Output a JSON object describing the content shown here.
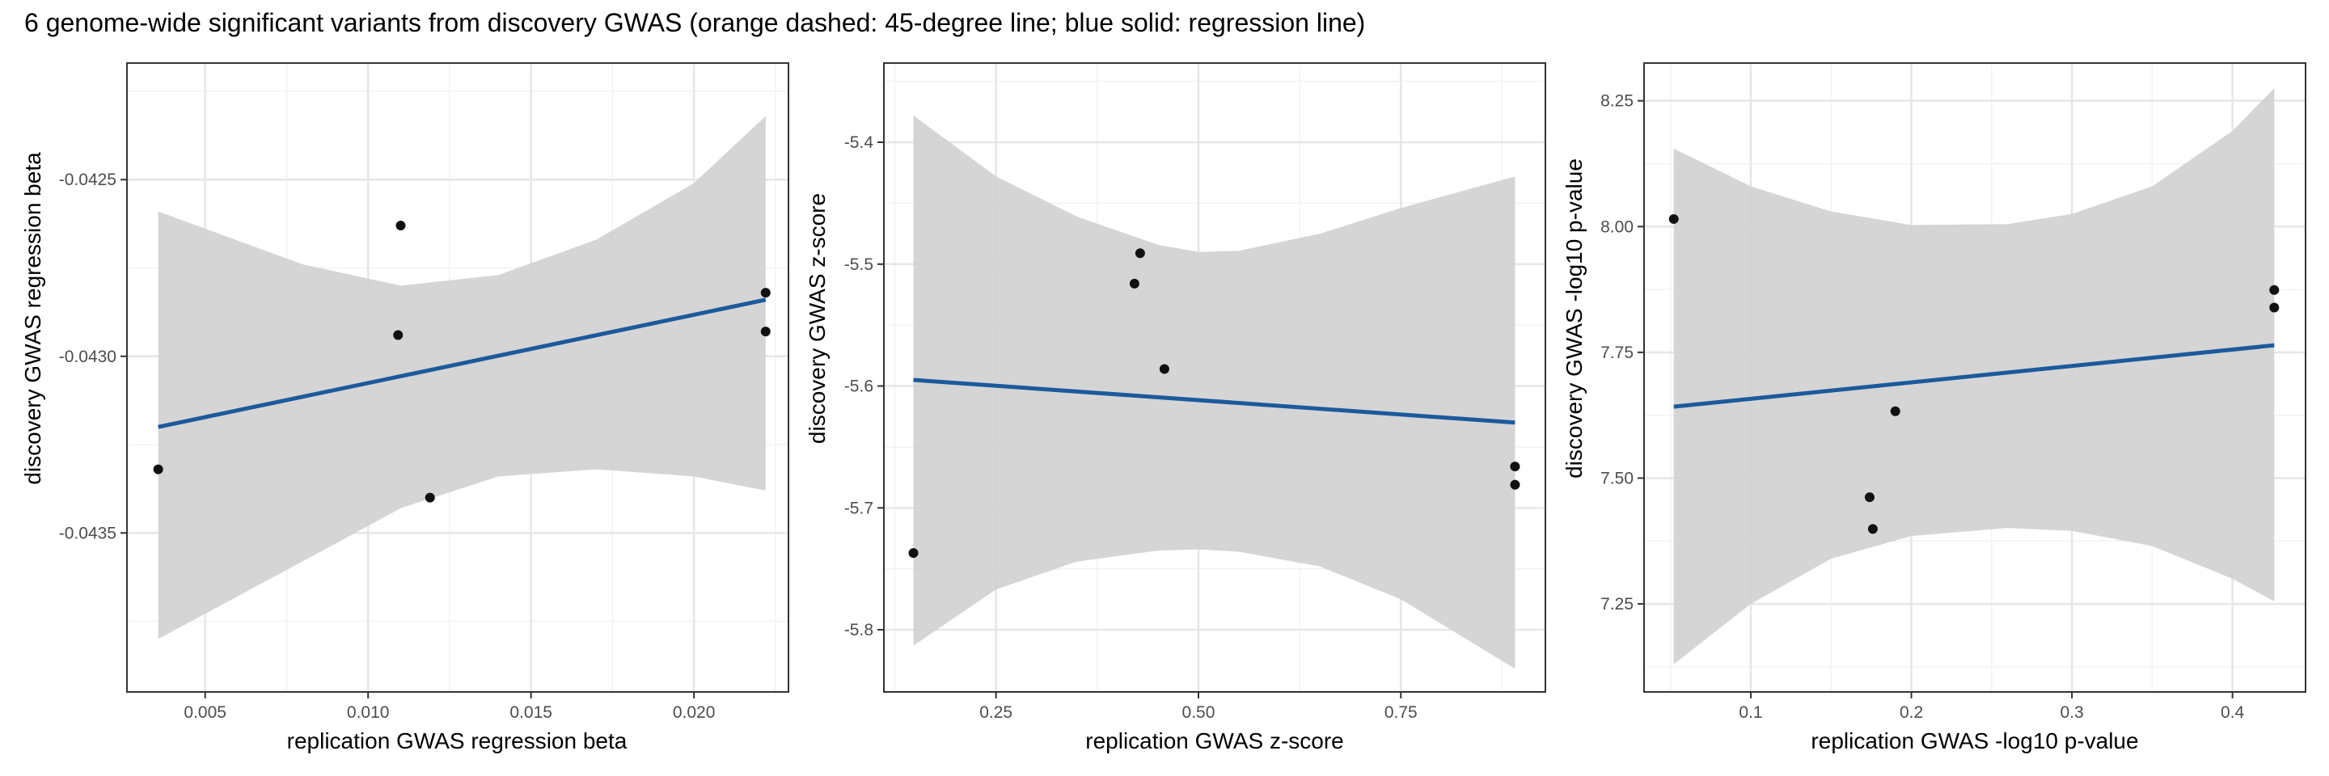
{
  "title": "6 genome-wide significant variants from discovery GWAS (orange dashed: 45-degree line; blue solid: regression line)",
  "colors": {
    "regression_line": "#1c5a9c",
    "confidence_band": "#d0d0d0",
    "points": "#111111",
    "panel_border": "#333333",
    "grid_major": "#e6e6e6",
    "grid_minor": "#f2f2f2"
  },
  "chart_data": [
    {
      "type": "scatter",
      "xlabel": "replication GWAS regression beta",
      "ylabel": "discovery GWAS regression beta",
      "xlim": [
        0.0026,
        0.0229
      ],
      "ylim": [
        -0.04395,
        -0.04217
      ],
      "xticks": [
        0.005,
        0.01,
        0.015,
        0.02
      ],
      "xtick_labels": [
        "0.005",
        "0.010",
        "0.015",
        "0.020"
      ],
      "yticks": [
        -0.0425,
        -0.043,
        -0.0435
      ],
      "ytick_labels": [
        "-0.0425",
        "-0.0430",
        "-0.0435"
      ],
      "points": [
        {
          "x": 0.00356,
          "y": -0.04332
        },
        {
          "x": 0.011,
          "y": -0.04263
        },
        {
          "x": 0.01092,
          "y": -0.04294
        },
        {
          "x": 0.0119,
          "y": -0.0434
        },
        {
          "x": 0.0222,
          "y": -0.04282
        },
        {
          "x": 0.0222,
          "y": -0.04293
        }
      ],
      "regression": {
        "x": [
          0.00356,
          0.0222
        ],
        "y": [
          -0.0432,
          -0.04284
        ]
      },
      "band": {
        "x": [
          0.00356,
          0.008,
          0.011,
          0.014,
          0.017,
          0.02,
          0.0222
        ],
        "lower": [
          -0.0438,
          -0.04358,
          -0.04343,
          -0.04334,
          -0.04332,
          -0.04334,
          -0.04338
        ],
        "upper": [
          -0.04259,
          -0.04274,
          -0.0428,
          -0.04277,
          -0.04267,
          -0.04251,
          -0.04232
        ]
      }
    },
    {
      "type": "scatter",
      "xlabel": "replication GWAS z-score",
      "ylabel": "discovery GWAS z-score",
      "xlim": [
        0.1115,
        0.9285
      ],
      "ylim": [
        -5.851,
        -5.335
      ],
      "xticks": [
        0.25,
        0.5,
        0.75
      ],
      "xtick_labels": [
        "0.25",
        "0.50",
        "0.75"
      ],
      "yticks": [
        -5.4,
        -5.5,
        -5.6,
        -5.7,
        -5.8
      ],
      "ytick_labels": [
        "-5.4",
        "-5.5",
        "-5.6",
        "-5.7",
        "-5.8"
      ],
      "points": [
        {
          "x": 0.148,
          "y": -5.737
        },
        {
          "x": 0.428,
          "y": -5.491
        },
        {
          "x": 0.421,
          "y": -5.516
        },
        {
          "x": 0.458,
          "y": -5.586
        },
        {
          "x": 0.891,
          "y": -5.666
        },
        {
          "x": 0.891,
          "y": -5.681
        }
      ],
      "regression": {
        "x": [
          0.148,
          0.891
        ],
        "y": [
          -5.595,
          -5.63
        ]
      },
      "band": {
        "x": [
          0.148,
          0.25,
          0.35,
          0.45,
          0.5,
          0.55,
          0.65,
          0.75,
          0.891
        ],
        "lower": [
          -5.813,
          -5.767,
          -5.744,
          -5.735,
          -5.734,
          -5.736,
          -5.748,
          -5.775,
          -5.832
        ],
        "upper": [
          -5.378,
          -5.428,
          -5.461,
          -5.484,
          -5.49,
          -5.489,
          -5.475,
          -5.454,
          -5.428
        ]
      }
    },
    {
      "type": "scatter",
      "xlabel": "replication GWAS -log10 p-value",
      "ylabel": "discovery GWAS -log10 p-value",
      "xlim": [
        0.0335,
        0.4455
      ],
      "ylim": [
        7.075,
        8.325
      ],
      "xticks": [
        0.1,
        0.2,
        0.3,
        0.4
      ],
      "xtick_labels": [
        "0.1",
        "0.2",
        "0.3",
        "0.4"
      ],
      "yticks": [
        8.25,
        8.0,
        7.75,
        7.5,
        7.25
      ],
      "ytick_labels": [
        "8.25",
        "8.00",
        "7.75",
        "7.50",
        "7.25"
      ],
      "points": [
        {
          "x": 0.052,
          "y": 8.015
        },
        {
          "x": 0.174,
          "y": 7.462
        },
        {
          "x": 0.176,
          "y": 7.399
        },
        {
          "x": 0.19,
          "y": 7.633
        },
        {
          "x": 0.426,
          "y": 7.874
        },
        {
          "x": 0.426,
          "y": 7.839
        }
      ],
      "regression": {
        "x": [
          0.052,
          0.426
        ],
        "y": [
          7.642,
          7.764
        ]
      },
      "band": {
        "x": [
          0.052,
          0.1,
          0.15,
          0.2,
          0.26,
          0.3,
          0.35,
          0.4,
          0.426
        ],
        "lower": [
          7.13,
          7.25,
          7.34,
          7.385,
          7.401,
          7.395,
          7.365,
          7.3,
          7.255
        ],
        "upper": [
          8.155,
          8.08,
          8.03,
          8.003,
          8.005,
          8.025,
          8.08,
          8.19,
          8.275
        ]
      }
    }
  ]
}
